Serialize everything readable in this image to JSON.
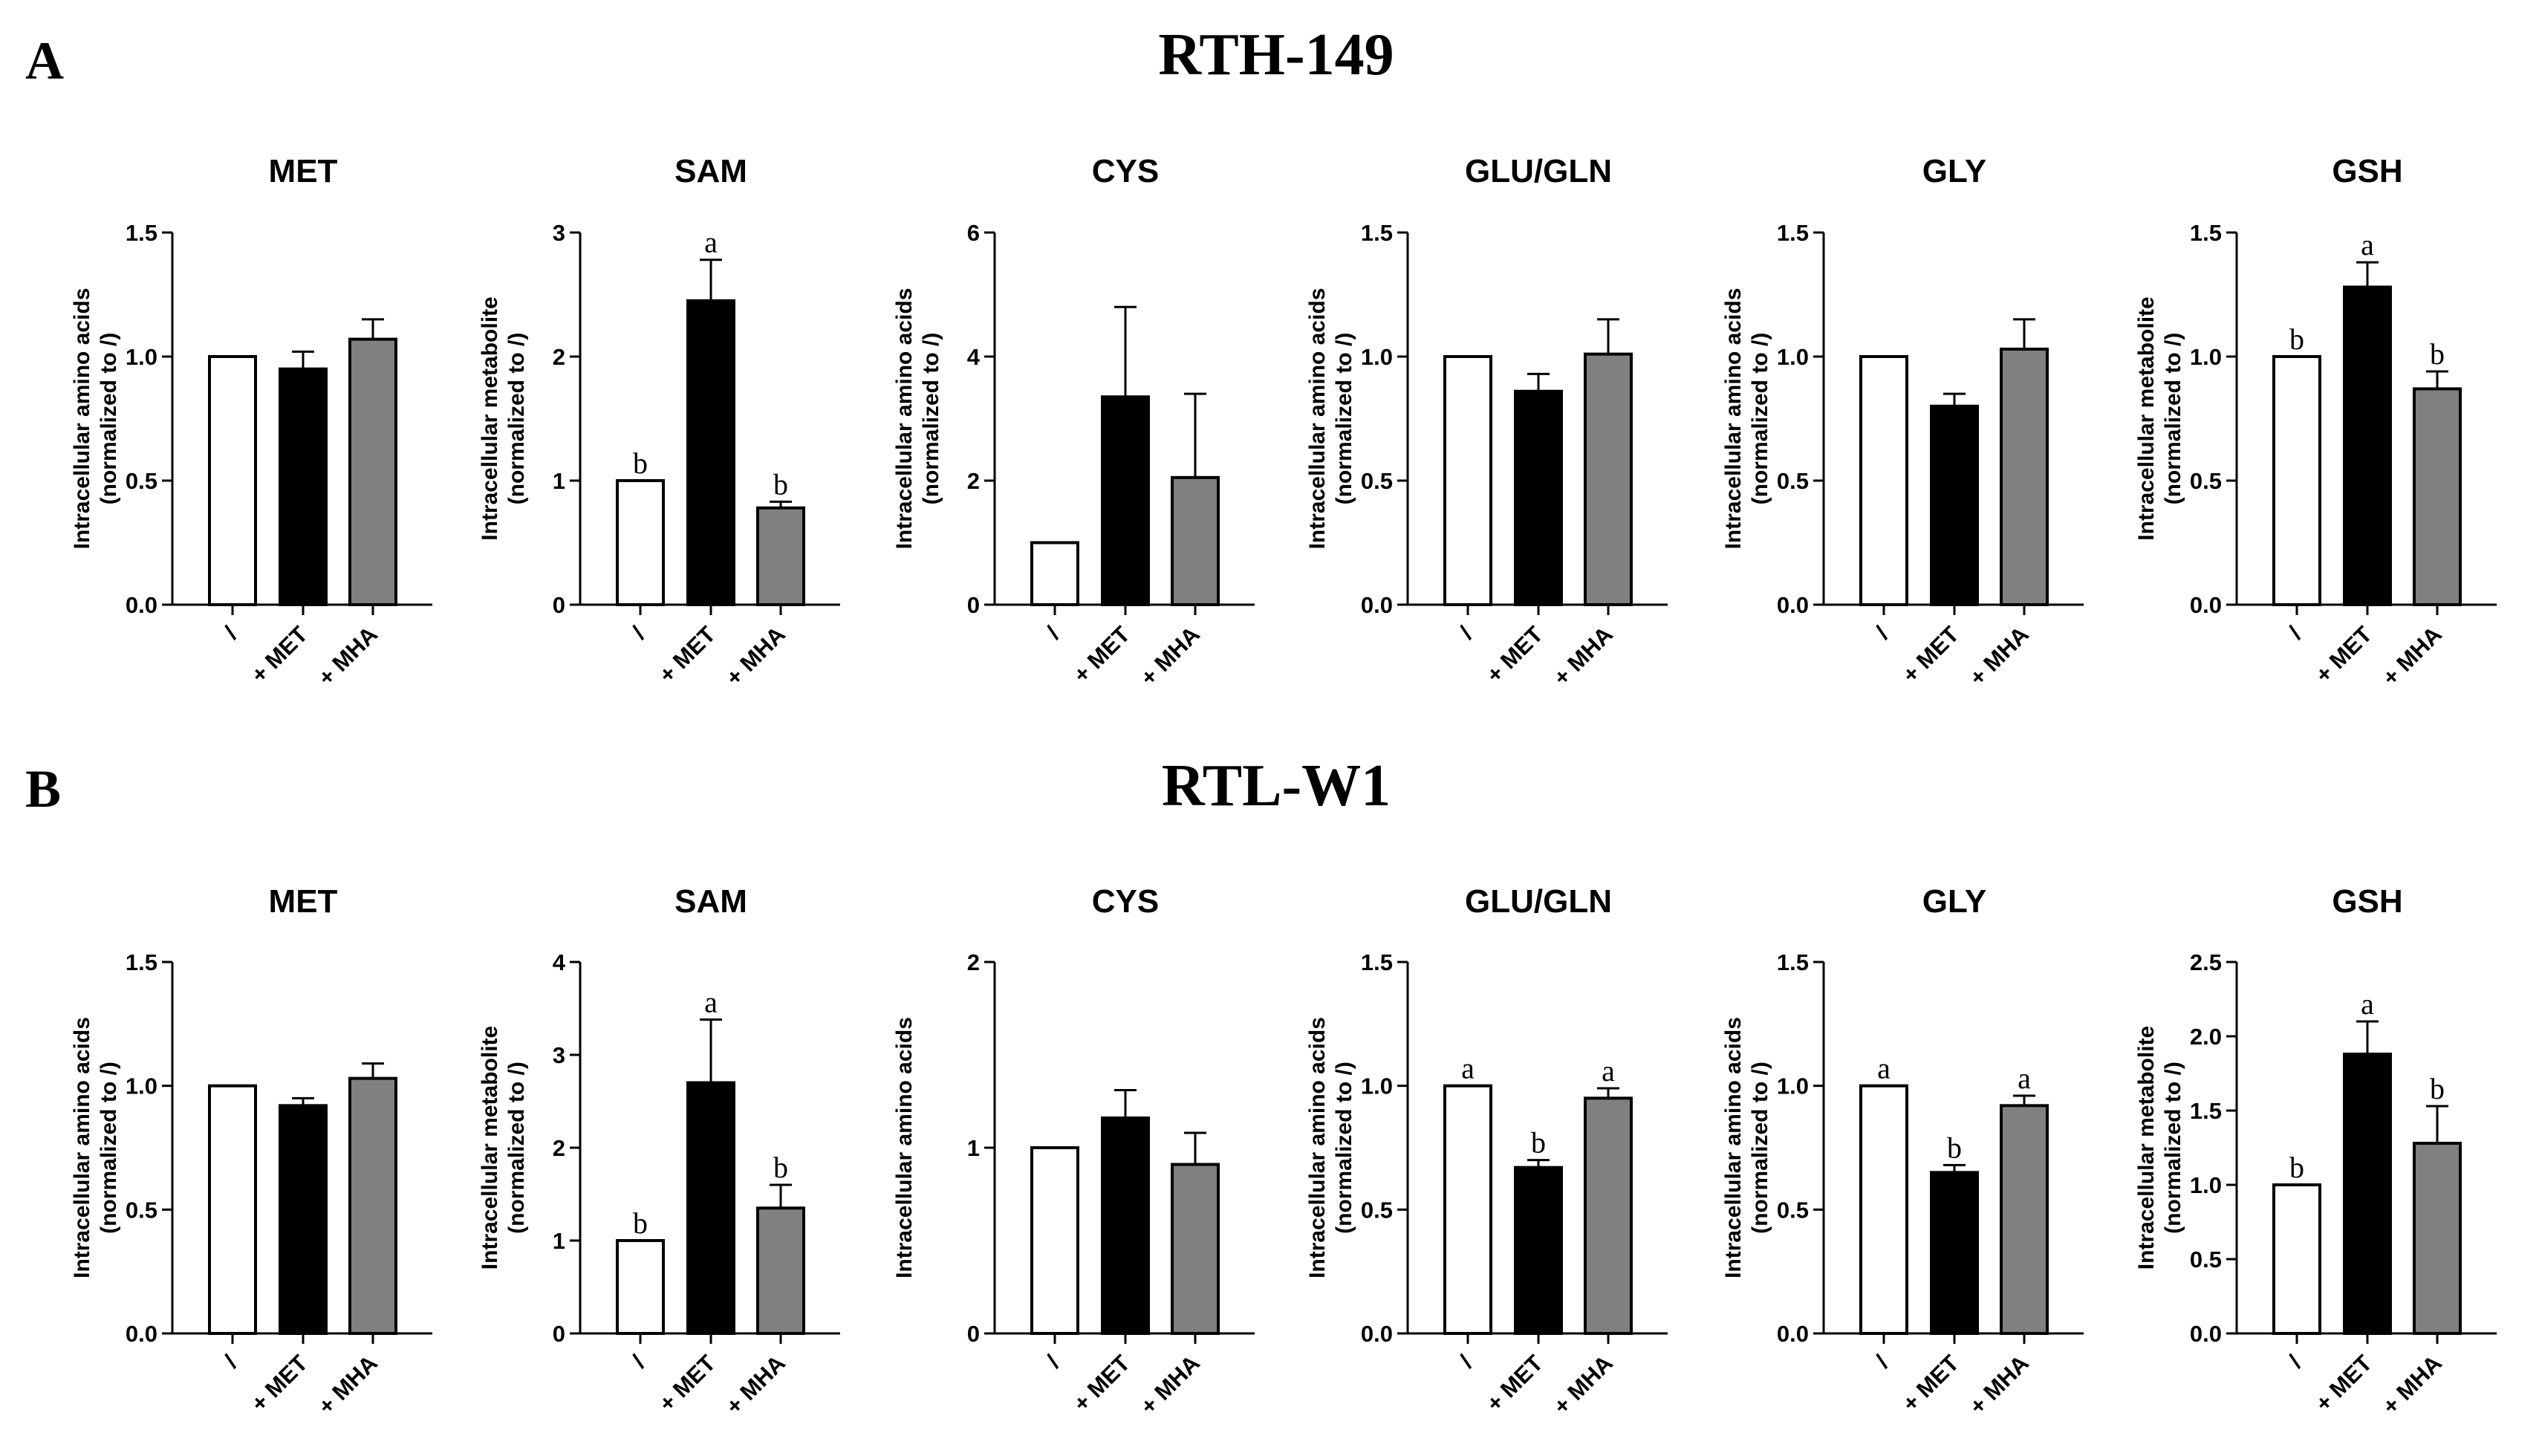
{
  "figure": {
    "panels": [
      {
        "letter": "A",
        "title": "RTH-149"
      },
      {
        "letter": "B",
        "title": "RTL-W1"
      }
    ]
  },
  "colors": {
    "ctrl": "#ffffff",
    "met": "#000000",
    "mha": "#808080",
    "stroke": "#000000"
  },
  "chart_data": [
    {
      "id": "A-MET",
      "panel": "A",
      "type": "bar",
      "title": "MET",
      "ylabel": [
        "Intracellular amino acids",
        "(normalized to /)"
      ],
      "categories": [
        "/",
        "+ MET",
        "+ MHA"
      ],
      "values": [
        1.0,
        0.95,
        1.07
      ],
      "errors": [
        0,
        0.07,
        0.08
      ],
      "ylim": [
        0,
        1.5
      ],
      "yticks": [
        0.0,
        0.5,
        1.0,
        1.5
      ],
      "tick_decimals": 1,
      "sig": [
        "",
        "",
        ""
      ]
    },
    {
      "id": "A-SAM",
      "panel": "A",
      "type": "bar",
      "title": "SAM",
      "ylabel": [
        "Intracellular  metabolite",
        "(normalized to /)"
      ],
      "categories": [
        "/",
        "+ MET",
        "+ MHA"
      ],
      "values": [
        1.0,
        2.45,
        0.78
      ],
      "errors": [
        0,
        0.33,
        0.05
      ],
      "ylim": [
        0,
        3
      ],
      "yticks": [
        0,
        1,
        2,
        3
      ],
      "tick_decimals": 0,
      "sig": [
        "b",
        "a",
        "b"
      ]
    },
    {
      "id": "A-CYS",
      "panel": "A",
      "type": "bar",
      "title": "CYS",
      "ylabel": [
        "Intracellular amino acids",
        "(normalized to /)"
      ],
      "categories": [
        "/",
        "+ MET",
        "+ MHA"
      ],
      "values": [
        1.0,
        3.35,
        2.05
      ],
      "errors": [
        0,
        1.45,
        1.35
      ],
      "ylim": [
        0,
        6
      ],
      "yticks": [
        0,
        2,
        4,
        6
      ],
      "tick_decimals": 0,
      "sig": [
        "",
        "",
        ""
      ]
    },
    {
      "id": "A-GLU",
      "panel": "A",
      "type": "bar",
      "title": "GLU/GLN",
      "ylabel": [
        "Intracellular amino acids",
        "(normalized to /)"
      ],
      "categories": [
        "/",
        "+ MET",
        "+ MHA"
      ],
      "values": [
        1.0,
        0.86,
        1.01
      ],
      "errors": [
        0,
        0.07,
        0.14
      ],
      "ylim": [
        0,
        1.5
      ],
      "yticks": [
        0.0,
        0.5,
        1.0,
        1.5
      ],
      "tick_decimals": 1,
      "sig": [
        "",
        "",
        ""
      ]
    },
    {
      "id": "A-GLY",
      "panel": "A",
      "type": "bar",
      "title": "GLY",
      "ylabel": [
        "Intracellular amino acids",
        "(normalized to /)"
      ],
      "categories": [
        "/",
        "+ MET",
        "+ MHA"
      ],
      "values": [
        1.0,
        0.8,
        1.03
      ],
      "errors": [
        0,
        0.05,
        0.12
      ],
      "ylim": [
        0,
        1.5
      ],
      "yticks": [
        0.0,
        0.5,
        1.0,
        1.5
      ],
      "tick_decimals": 1,
      "sig": [
        "",
        "",
        ""
      ]
    },
    {
      "id": "A-GSH",
      "panel": "A",
      "type": "bar",
      "title": "GSH",
      "ylabel": [
        "Intracellular  metabolite",
        "(normalized to /)"
      ],
      "categories": [
        "/",
        "+ MET",
        "+ MHA"
      ],
      "values": [
        1.0,
        1.28,
        0.87
      ],
      "errors": [
        0,
        0.1,
        0.07
      ],
      "ylim": [
        0,
        1.5
      ],
      "yticks": [
        0.0,
        0.5,
        1.0,
        1.5
      ],
      "tick_decimals": 1,
      "sig": [
        "b",
        "a",
        "b"
      ]
    },
    {
      "id": "B-MET",
      "panel": "B",
      "type": "bar",
      "title": "MET",
      "ylabel": [
        "Intracellular amino acids",
        "(normalized to /)"
      ],
      "categories": [
        "/",
        "+ MET",
        "+ MHA"
      ],
      "values": [
        1.0,
        0.92,
        1.03
      ],
      "errors": [
        0,
        0.03,
        0.06
      ],
      "ylim": [
        0,
        1.5
      ],
      "yticks": [
        0.0,
        0.5,
        1.0,
        1.5
      ],
      "tick_decimals": 1,
      "sig": [
        "",
        "",
        ""
      ]
    },
    {
      "id": "B-SAM",
      "panel": "B",
      "type": "bar",
      "title": "SAM",
      "ylabel": [
        "Intracellular  metabolite",
        "(normalized to /)"
      ],
      "categories": [
        "/",
        "+ MET",
        "+ MHA"
      ],
      "values": [
        1.0,
        2.7,
        1.35
      ],
      "errors": [
        0,
        0.68,
        0.25
      ],
      "ylim": [
        0,
        4
      ],
      "yticks": [
        0,
        1,
        2,
        3,
        4
      ],
      "tick_decimals": 0,
      "sig": [
        "b",
        "a",
        "b"
      ]
    },
    {
      "id": "B-CYS",
      "panel": "B",
      "type": "bar",
      "title": "CYS",
      "ylabel": [
        "Intracellular amino acids",
        ""
      ],
      "categories": [
        "/",
        "+ MET",
        "+ MHA"
      ],
      "values": [
        1.0,
        1.16,
        0.91
      ],
      "errors": [
        0,
        0.15,
        0.17
      ],
      "ylim": [
        0,
        2
      ],
      "yticks": [
        0,
        1,
        2
      ],
      "tick_decimals": 0,
      "sig": [
        "",
        "",
        ""
      ]
    },
    {
      "id": "B-GLU",
      "panel": "B",
      "type": "bar",
      "title": "GLU/GLN",
      "ylabel": [
        "Intracellular amino acids",
        "(normalized to /)"
      ],
      "categories": [
        "/",
        "+ MET",
        "+ MHA"
      ],
      "values": [
        1.0,
        0.67,
        0.95
      ],
      "errors": [
        0,
        0.03,
        0.04
      ],
      "ylim": [
        0,
        1.5
      ],
      "yticks": [
        0.0,
        0.5,
        1.0,
        1.5
      ],
      "tick_decimals": 1,
      "sig": [
        "a",
        "b",
        "a"
      ]
    },
    {
      "id": "B-GLY",
      "panel": "B",
      "type": "bar",
      "title": "GLY",
      "ylabel": [
        "Intracellular amino acids",
        "(normalized to /)"
      ],
      "categories": [
        "/",
        "+ MET",
        "+ MHA"
      ],
      "values": [
        1.0,
        0.65,
        0.92
      ],
      "errors": [
        0,
        0.03,
        0.04
      ],
      "ylim": [
        0,
        1.5
      ],
      "yticks": [
        0.0,
        0.5,
        1.0,
        1.5
      ],
      "tick_decimals": 1,
      "sig": [
        "a",
        "b",
        "a"
      ]
    },
    {
      "id": "B-GSH",
      "panel": "B",
      "type": "bar",
      "title": "GSH",
      "ylabel": [
        "Intracellular  metabolite",
        "(normalized to /)"
      ],
      "categories": [
        "/",
        "+ MET",
        "+ MHA"
      ],
      "values": [
        1.0,
        1.88,
        1.28
      ],
      "errors": [
        0,
        0.22,
        0.25
      ],
      "ylim": [
        0,
        2.5
      ],
      "yticks": [
        0.0,
        0.5,
        1.0,
        1.5,
        2.0,
        2.5
      ],
      "tick_decimals": 1,
      "sig": [
        "b",
        "a",
        "b"
      ]
    }
  ]
}
